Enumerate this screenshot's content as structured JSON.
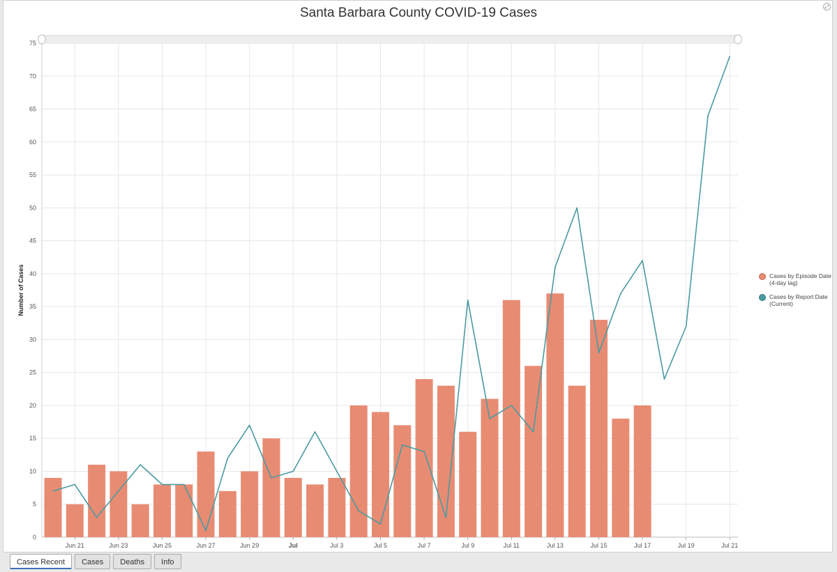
{
  "chart_data": {
    "type": "bar",
    "title": "Santa Barbara County COVID-19 Cases",
    "xlabel": "",
    "ylabel": "Number of Cases",
    "ylim": [
      0,
      75
    ],
    "yticks": [
      0,
      5,
      10,
      15,
      20,
      25,
      30,
      35,
      40,
      45,
      50,
      55,
      60,
      65,
      70,
      75
    ],
    "grid": true,
    "legend_position": "right",
    "x_tick_labels": [
      {
        "date": "2020-06-21",
        "label": "Jun 21"
      },
      {
        "date": "2020-06-23",
        "label": "Jun 23"
      },
      {
        "date": "2020-06-25",
        "label": "Jun 25"
      },
      {
        "date": "2020-06-27",
        "label": "Jun 27"
      },
      {
        "date": "2020-06-29",
        "label": "Jun 29"
      },
      {
        "date": "2020-07-01",
        "label": "Jul",
        "bold": true
      },
      {
        "date": "2020-07-03",
        "label": "Jul 3"
      },
      {
        "date": "2020-07-05",
        "label": "Jul 5"
      },
      {
        "date": "2020-07-07",
        "label": "Jul 7"
      },
      {
        "date": "2020-07-09",
        "label": "Jul 9"
      },
      {
        "date": "2020-07-11",
        "label": "Jul 11"
      },
      {
        "date": "2020-07-13",
        "label": "Jul 13"
      },
      {
        "date": "2020-07-15",
        "label": "Jul 15"
      },
      {
        "date": "2020-07-17",
        "label": "Jul 17"
      },
      {
        "date": "2020-07-19",
        "label": "Jul 19"
      },
      {
        "date": "2020-07-21",
        "label": "Jul 21"
      }
    ],
    "series": [
      {
        "name": "Cases by Episode Date (4-day lag)",
        "type": "bar",
        "color": "#e88b73",
        "points": [
          {
            "x": "2020-06-20",
            "y": 9
          },
          {
            "x": "2020-06-21",
            "y": 5
          },
          {
            "x": "2020-06-22",
            "y": 11
          },
          {
            "x": "2020-06-23",
            "y": 10
          },
          {
            "x": "2020-06-24",
            "y": 5
          },
          {
            "x": "2020-06-25",
            "y": 8
          },
          {
            "x": "2020-06-26",
            "y": 8
          },
          {
            "x": "2020-06-27",
            "y": 13
          },
          {
            "x": "2020-06-28",
            "y": 7
          },
          {
            "x": "2020-06-29",
            "y": 10
          },
          {
            "x": "2020-06-30",
            "y": 15
          },
          {
            "x": "2020-07-01",
            "y": 9
          },
          {
            "x": "2020-07-02",
            "y": 8
          },
          {
            "x": "2020-07-03",
            "y": 9
          },
          {
            "x": "2020-07-04",
            "y": 20
          },
          {
            "x": "2020-07-05",
            "y": 19
          },
          {
            "x": "2020-07-06",
            "y": 17
          },
          {
            "x": "2020-07-07",
            "y": 24
          },
          {
            "x": "2020-07-08",
            "y": 23
          },
          {
            "x": "2020-07-09",
            "y": 16
          },
          {
            "x": "2020-07-10",
            "y": 21
          },
          {
            "x": "2020-07-11",
            "y": 36
          },
          {
            "x": "2020-07-12",
            "y": 26
          },
          {
            "x": "2020-07-13",
            "y": 37
          },
          {
            "x": "2020-07-14",
            "y": 23
          },
          {
            "x": "2020-07-15",
            "y": 33
          },
          {
            "x": "2020-07-16",
            "y": 18
          },
          {
            "x": "2020-07-17",
            "y": 20
          }
        ]
      },
      {
        "name": "Cases by Report Date (Current)",
        "type": "line",
        "color": "#4a9aa0",
        "points": [
          {
            "x": "2020-06-20",
            "y": 7
          },
          {
            "x": "2020-06-21",
            "y": 8
          },
          {
            "x": "2020-06-22",
            "y": 3
          },
          {
            "x": "2020-06-23",
            "y": 7
          },
          {
            "x": "2020-06-24",
            "y": 11
          },
          {
            "x": "2020-06-25",
            "y": 8
          },
          {
            "x": "2020-06-26",
            "y": 8
          },
          {
            "x": "2020-06-27",
            "y": 1
          },
          {
            "x": "2020-06-28",
            "y": 12
          },
          {
            "x": "2020-06-29",
            "y": 17
          },
          {
            "x": "2020-06-30",
            "y": 9
          },
          {
            "x": "2020-07-01",
            "y": 10
          },
          {
            "x": "2020-07-02",
            "y": 16
          },
          {
            "x": "2020-07-03",
            "y": 10
          },
          {
            "x": "2020-07-04",
            "y": 4
          },
          {
            "x": "2020-07-05",
            "y": 2
          },
          {
            "x": "2020-07-06",
            "y": 14
          },
          {
            "x": "2020-07-07",
            "y": 13
          },
          {
            "x": "2020-07-08",
            "y": 3
          },
          {
            "x": "2020-07-09",
            "y": 36
          },
          {
            "x": "2020-07-10",
            "y": 18
          },
          {
            "x": "2020-07-11",
            "y": 20
          },
          {
            "x": "2020-07-12",
            "y": 16
          },
          {
            "x": "2020-07-13",
            "y": 41
          },
          {
            "x": "2020-07-14",
            "y": 50
          },
          {
            "x": "2020-07-15",
            "y": 28
          },
          {
            "x": "2020-07-16",
            "y": 37
          },
          {
            "x": "2020-07-17",
            "y": 42
          },
          {
            "x": "2020-07-18",
            "y": 24
          },
          {
            "x": "2020-07-19",
            "y": 32
          },
          {
            "x": "2020-07-20",
            "y": 64
          },
          {
            "x": "2020-07-21",
            "y": 73
          }
        ]
      }
    ]
  },
  "tabs": [
    {
      "label": "Cases Recent",
      "active": true
    },
    {
      "label": "Cases"
    },
    {
      "label": "Deaths"
    },
    {
      "label": "Info"
    }
  ],
  "colors": {
    "bar": "#e88b73",
    "line": "#4a9aa0",
    "grid": "#e6e6e6",
    "tab_active_underline": "#3b6fb6"
  }
}
